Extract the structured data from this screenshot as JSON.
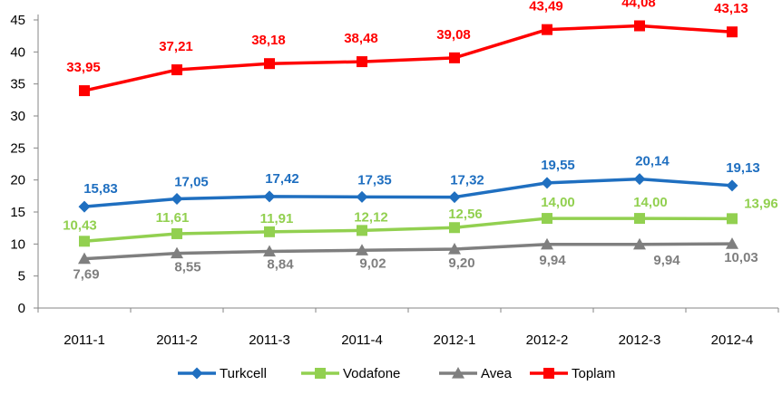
{
  "chart_data": {
    "type": "line",
    "title": "",
    "xlabel": "",
    "ylabel": "",
    "categories": [
      "2011-1",
      "2011-2",
      "2011-3",
      "2011-4",
      "2012-1",
      "2012-2",
      "2012-3",
      "2012-4"
    ],
    "ylim": [
      0,
      45
    ],
    "yticks": [
      0,
      5,
      10,
      15,
      20,
      25,
      30,
      35,
      40,
      45
    ],
    "grid": false,
    "legend_position": "bottom",
    "series": [
      {
        "name": "Turkcell",
        "color": "#1f6fc0",
        "marker": "diamond",
        "values": [
          15.83,
          17.05,
          17.42,
          17.35,
          17.32,
          19.55,
          20.14,
          19.13
        ],
        "labels": [
          "15,83",
          "17,05",
          "17,42",
          "17,35",
          "17,32",
          "19,55",
          "20,14",
          "19,13"
        ]
      },
      {
        "name": "Vodafone",
        "color": "#92d050",
        "marker": "square",
        "values": [
          10.43,
          11.61,
          11.91,
          12.12,
          12.56,
          14.0,
          14.0,
          13.96
        ],
        "labels": [
          "10,43",
          "11,61",
          "11,91",
          "12,12",
          "12,56",
          "14,00",
          "14,00",
          "13,96"
        ]
      },
      {
        "name": "Avea",
        "color": "#7f7f7f",
        "marker": "triangle",
        "values": [
          7.69,
          8.55,
          8.84,
          9.02,
          9.2,
          9.94,
          9.94,
          10.03
        ],
        "labels": [
          "7,69",
          "8,55",
          "8,84",
          "9,02",
          "9,20",
          "9,94",
          "9,94",
          "10,03"
        ]
      },
      {
        "name": "Toplam",
        "color": "#ff0000",
        "marker": "square",
        "values": [
          33.95,
          37.21,
          38.18,
          38.48,
          39.08,
          43.49,
          44.08,
          43.13
        ],
        "labels": [
          "33,95",
          "37,21",
          "38,18",
          "38,48",
          "39,08",
          "43,49",
          "44,08",
          "43,13"
        ]
      }
    ]
  }
}
